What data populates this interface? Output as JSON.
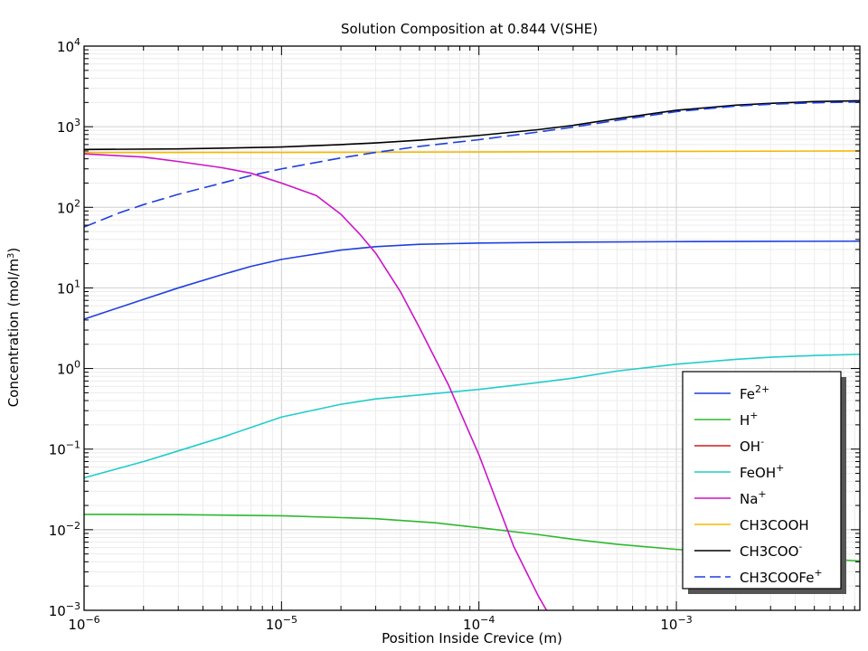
{
  "chart_data": {
    "type": "line",
    "title": "Solution Composition at 0.844 V(SHE)",
    "xlabel": "Position Inside Crevice (m)",
    "ylabel": "Concentration (mol/m³)",
    "ylabel_main": "Concentration (mol/m",
    "ylabel_sup": "3",
    "ylabel_tail": ")",
    "xscale": "log",
    "yscale": "log",
    "xlim": [
      1e-06,
      0.0085
    ],
    "ylim": [
      0.001,
      10000
    ],
    "grid": true,
    "legend_position": "right",
    "x_ticks": [
      {
        "value": 1e-06,
        "base": "10",
        "exp": "−6"
      },
      {
        "value": 1e-05,
        "base": "10",
        "exp": "−5"
      },
      {
        "value": 0.0001,
        "base": "10",
        "exp": "−4"
      },
      {
        "value": 0.001,
        "base": "10",
        "exp": "−3"
      }
    ],
    "y_ticks": [
      {
        "value": 0.001,
        "base": "10",
        "exp": "−3"
      },
      {
        "value": 0.01,
        "base": "10",
        "exp": "−2"
      },
      {
        "value": 0.1,
        "base": "10",
        "exp": "−1"
      },
      {
        "value": 1,
        "base": "10",
        "exp": "0"
      },
      {
        "value": 10,
        "base": "10",
        "exp": "1"
      },
      {
        "value": 100,
        "base": "10",
        "exp": "2"
      },
      {
        "value": 1000,
        "base": "10",
        "exp": "3"
      },
      {
        "value": 10000,
        "base": "10",
        "exp": "4"
      }
    ],
    "series": [
      {
        "name": "Fe2+",
        "label_base": "Fe",
        "label_sup": "2+",
        "color": "#1f3fe0",
        "dash": "solid",
        "x": [
          1e-06,
          2e-06,
          3e-06,
          5e-06,
          7e-06,
          1e-05,
          2e-05,
          3e-05,
          5e-05,
          0.0001,
          0.0003,
          0.001,
          0.003,
          0.0085
        ],
        "y": [
          4.1,
          7.2,
          10.0,
          14.6,
          18.5,
          22.6,
          29.5,
          32.5,
          34.8,
          36.0,
          37.0,
          37.5,
          37.8,
          38.0
        ]
      },
      {
        "name": "H+",
        "label_base": "H",
        "label_sup": "+",
        "color": "#2db82d",
        "dash": "solid",
        "x": [
          1e-06,
          3e-06,
          1e-05,
          3e-05,
          6e-05,
          0.0001,
          0.0002,
          0.0003,
          0.0005,
          0.001,
          0.002,
          0.003,
          0.005,
          0.0085
        ],
        "y": [
          0.0155,
          0.0154,
          0.0149,
          0.0137,
          0.0122,
          0.0106,
          0.0087,
          0.0076,
          0.0066,
          0.0057,
          0.0051,
          0.0047,
          0.0044,
          0.0041
        ]
      },
      {
        "name": "OH-",
        "label_base": "OH",
        "label_sup": "-",
        "color": "#d21c1c",
        "dash": "solid",
        "x": [],
        "y": []
      },
      {
        "name": "FeOH+",
        "label_base": "FeOH",
        "label_sup": "+",
        "color": "#22cccc",
        "dash": "solid",
        "x": [
          1e-06,
          2e-06,
          3e-06,
          5e-06,
          1e-05,
          2e-05,
          3e-05,
          5e-05,
          0.0001,
          0.0002,
          0.0003,
          0.0005,
          0.001,
          0.002,
          0.003,
          0.005,
          0.0085
        ],
        "y": [
          0.044,
          0.07,
          0.095,
          0.14,
          0.25,
          0.36,
          0.42,
          0.47,
          0.55,
          0.67,
          0.76,
          0.93,
          1.13,
          1.3,
          1.38,
          1.45,
          1.5
        ]
      },
      {
        "name": "Na+",
        "label_base": "Na",
        "label_sup": "+",
        "color": "#cc14c8",
        "dash": "solid",
        "x": [
          1e-06,
          2e-06,
          3e-06,
          5e-06,
          7e-06,
          1e-05,
          1.5e-05,
          2e-05,
          2.5e-05,
          3e-05,
          4e-05,
          5e-05,
          7e-05,
          0.0001,
          0.00015,
          0.0002,
          0.00022
        ],
        "y": [
          460,
          420,
          370,
          310,
          265,
          200,
          140,
          82,
          46,
          27,
          9.0,
          3.2,
          0.63,
          0.085,
          0.0062,
          0.0015,
          0.001
        ]
      },
      {
        "name": "CH3COOH",
        "label_base": "CH3COOH",
        "label_sup": "",
        "color": "#f5b800",
        "dash": "solid",
        "x": [
          1e-06,
          1e-05,
          0.0001,
          0.001,
          0.0085
        ],
        "y": [
          478,
          480,
          486,
          494,
          500
        ]
      },
      {
        "name": "CH3COO-",
        "label_base": "CH3COO",
        "label_sup": "-",
        "color": "#000000",
        "dash": "solid",
        "x": [
          1e-06,
          3e-06,
          1e-05,
          2e-05,
          3e-05,
          5e-05,
          0.0001,
          0.0002,
          0.0003,
          0.0005,
          0.001,
          0.002,
          0.003,
          0.005,
          0.0085
        ],
        "y": [
          522,
          530,
          560,
          600,
          630,
          680,
          780,
          920,
          1040,
          1260,
          1600,
          1850,
          1950,
          2050,
          2100
        ]
      },
      {
        "name": "CH3COOFe+",
        "label_base": "CH3COOFe",
        "label_sup": "+",
        "color": "#1f3fe0",
        "dash": "dashed",
        "x": [
          1e-06,
          1.5e-06,
          2e-06,
          3e-06,
          5e-06,
          7e-06,
          1e-05,
          2e-05,
          3e-05,
          5e-05,
          0.0001,
          0.0002,
          0.0003,
          0.0005,
          0.001,
          0.002,
          0.003,
          0.005,
          0.0085
        ],
        "y": [
          57,
          85,
          108,
          145,
          200,
          248,
          300,
          410,
          480,
          570,
          690,
          860,
          990,
          1200,
          1540,
          1800,
          1900,
          1980,
          2030
        ]
      }
    ]
  }
}
